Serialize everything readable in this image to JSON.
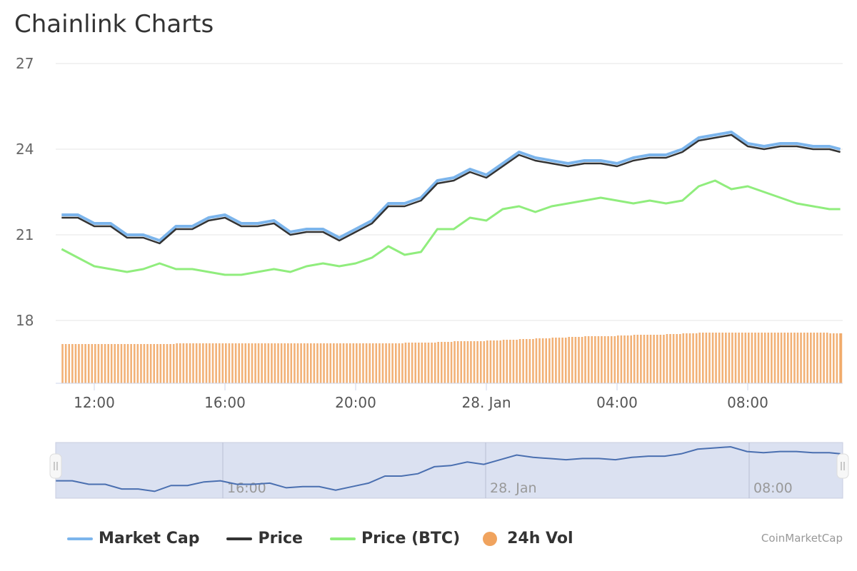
{
  "title": "Chainlink Charts",
  "credits": "CoinMarketCap",
  "colors": {
    "market_cap": "#7cb5ec",
    "price": "#333333",
    "price_btc": "#90ed7d",
    "volume": "#f0a35e",
    "navigator_fill": "#dbe1f1",
    "navigator_line": "#4a6fb0"
  },
  "chart_data": {
    "type": "line",
    "title": "Chainlink Charts",
    "y_ticks": [
      "18",
      "21",
      "24",
      "27"
    ],
    "ylim": [
      18,
      27
    ],
    "x_ticks": [
      "12:00",
      "16:00",
      "20:00",
      "28. Jan",
      "04:00",
      "08:00"
    ],
    "navigator_ticks": [
      "16:00",
      "28. Jan",
      "08:00"
    ],
    "grid": true,
    "legend": "bottom",
    "x": [
      "11:00",
      "11:30",
      "12:00",
      "12:30",
      "13:00",
      "13:30",
      "14:00",
      "14:30",
      "15:00",
      "15:30",
      "16:00",
      "16:30",
      "17:00",
      "17:30",
      "18:00",
      "18:30",
      "19:00",
      "19:30",
      "20:00",
      "20:30",
      "21:00",
      "21:30",
      "22:00",
      "22:30",
      "23:00",
      "23:30",
      "00:00",
      "00:30",
      "01:00",
      "01:30",
      "02:00",
      "02:30",
      "03:00",
      "03:30",
      "04:00",
      "04:30",
      "05:00",
      "05:30",
      "06:00",
      "06:30",
      "07:00",
      "07:30",
      "08:00",
      "08:30",
      "09:00",
      "09:30",
      "10:00",
      "10:30",
      "10:50"
    ],
    "series": [
      {
        "name": "Market Cap",
        "values": [
          21.7,
          21.7,
          21.4,
          21.4,
          21.0,
          21.0,
          20.8,
          21.3,
          21.3,
          21.6,
          21.7,
          21.4,
          21.4,
          21.5,
          21.1,
          21.2,
          21.2,
          20.9,
          21.2,
          21.5,
          22.1,
          22.1,
          22.3,
          22.9,
          23.0,
          23.3,
          23.1,
          23.5,
          23.9,
          23.7,
          23.6,
          23.5,
          23.6,
          23.6,
          23.5,
          23.7,
          23.8,
          23.8,
          24.0,
          24.4,
          24.5,
          24.6,
          24.2,
          24.1,
          24.2,
          24.2,
          24.1,
          24.1,
          24.0
        ]
      },
      {
        "name": "Price",
        "values": [
          21.6,
          21.6,
          21.3,
          21.3,
          20.9,
          20.9,
          20.7,
          21.2,
          21.2,
          21.5,
          21.6,
          21.3,
          21.3,
          21.4,
          21.0,
          21.1,
          21.1,
          20.8,
          21.1,
          21.4,
          22.0,
          22.0,
          22.2,
          22.8,
          22.9,
          23.2,
          23.0,
          23.4,
          23.8,
          23.6,
          23.5,
          23.4,
          23.5,
          23.5,
          23.4,
          23.6,
          23.7,
          23.7,
          23.9,
          24.3,
          24.4,
          24.5,
          24.1,
          24.0,
          24.1,
          24.1,
          24.0,
          24.0,
          23.9
        ]
      },
      {
        "name": "Price (BTC)",
        "values": [
          20.5,
          20.2,
          19.9,
          19.8,
          19.7,
          19.8,
          20.0,
          19.8,
          19.8,
          19.7,
          19.6,
          19.6,
          19.7,
          19.8,
          19.7,
          19.9,
          20.0,
          19.9,
          20.0,
          20.2,
          20.6,
          20.3,
          20.4,
          21.2,
          21.2,
          21.6,
          21.5,
          21.9,
          22.0,
          21.8,
          22.0,
          22.1,
          22.2,
          22.3,
          22.2,
          22.1,
          22.2,
          22.1,
          22.2,
          22.7,
          22.9,
          22.6,
          22.7,
          22.5,
          22.3,
          22.1,
          22.0,
          21.9,
          21.9
        ]
      },
      {
        "name": "24h Vol",
        "values": [
          55,
          55,
          55,
          55,
          55,
          55,
          55,
          56,
          56,
          56,
          56,
          56,
          56,
          56,
          56,
          56,
          56,
          56,
          56,
          56,
          56,
          57,
          57,
          58,
          59,
          59,
          60,
          61,
          62,
          63,
          64,
          65,
          66,
          66,
          67,
          68,
          68,
          69,
          70,
          71,
          71,
          71,
          71,
          71,
          71,
          71,
          71,
          70,
          70
        ]
      }
    ]
  }
}
